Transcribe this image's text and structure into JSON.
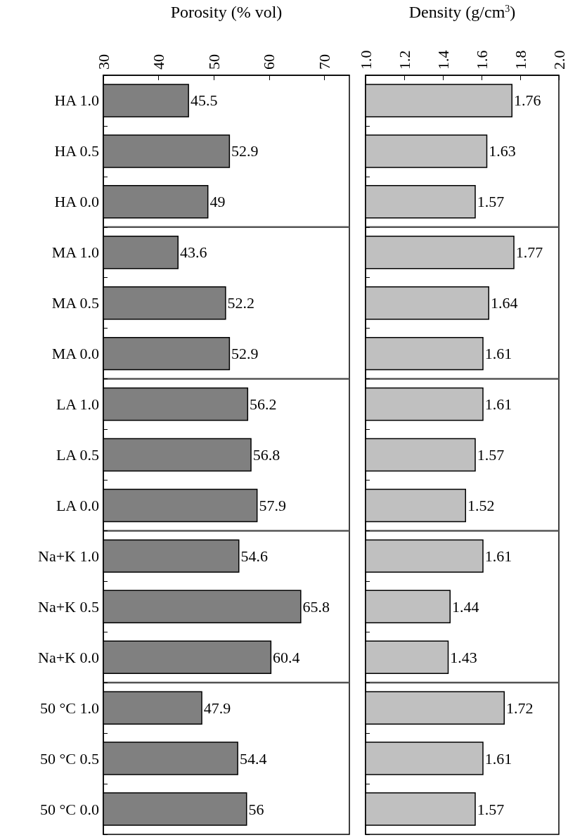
{
  "chart_data": [
    {
      "type": "bar",
      "orientation": "horizontal",
      "xlabel": "Porosity (% vol)",
      "categories": [
        "HA 1.0",
        "HA 0.5",
        "HA 0.0",
        "MA 1.0",
        "MA 0.5",
        "MA 0.0",
        "LA 1.0",
        "LA 0.5",
        "LA 0.0",
        "Na+K 1.0",
        "Na+K 0.5",
        "Na+K 0.0",
        "50 °C 1.0",
        "50 °C 0.5",
        "50 °C 0.0"
      ],
      "values": [
        45.5,
        52.9,
        49,
        43.6,
        52.2,
        52.9,
        56.2,
        56.8,
        57.9,
        54.6,
        65.8,
        60.4,
        47.9,
        54.4,
        56
      ],
      "color": "#808080",
      "data_labels": true,
      "xlim": [
        30,
        74.5
      ],
      "xticks": [
        30,
        40,
        50,
        60,
        70
      ]
    },
    {
      "type": "bar",
      "orientation": "horizontal",
      "xlabel": "Density (g/cm$^{3}$)",
      "categories": [
        null,
        null,
        null,
        null,
        null,
        null,
        null,
        null,
        null,
        null,
        null,
        null,
        null,
        null,
        null
      ],
      "values": [
        1.76,
        1.63,
        1.57,
        1.77,
        1.64,
        1.61,
        1.61,
        1.57,
        1.52,
        1.61,
        1.44,
        1.43,
        1.72,
        1.61,
        1.57
      ],
      "color": "#c0c0c0",
      "data_labels": true,
      "tick_labels": "x",
      "xlim": [
        1.0,
        2.0
      ],
      "xticks": [
        {
          "value": 1.0,
          "label": "1.0"
        },
        {
          "value": 1.2,
          "label": "1.2"
        },
        {
          "value": 1.4,
          "label": "1.4"
        },
        {
          "value": 1.6,
          "label": "1.6"
        },
        {
          "value": 1.8,
          "label": "1.8"
        },
        {
          "value": 2.0,
          "label": "2.0"
        }
      ]
    }
  ]
}
